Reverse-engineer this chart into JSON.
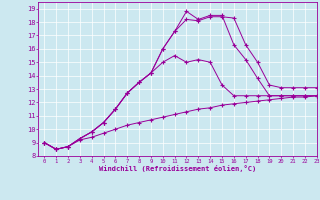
{
  "xlabel": "Windchill (Refroidissement éolien,°C)",
  "background_color": "#cce8f0",
  "line_color": "#990099",
  "xlim": [
    -0.5,
    23
  ],
  "ylim": [
    8,
    19.5
  ],
  "xticks": [
    0,
    1,
    2,
    3,
    4,
    5,
    6,
    7,
    8,
    9,
    10,
    11,
    12,
    13,
    14,
    15,
    16,
    17,
    18,
    19,
    20,
    21,
    22,
    23
  ],
  "yticks": [
    8,
    9,
    10,
    11,
    12,
    13,
    14,
    15,
    16,
    17,
    18,
    19
  ],
  "line1_x": [
    0,
    1,
    2,
    3,
    4,
    5,
    6,
    7,
    8,
    9,
    10,
    11,
    12,
    13,
    14,
    15,
    16,
    17,
    18,
    19,
    20,
    21,
    22,
    23
  ],
  "line1_y": [
    9.0,
    8.5,
    8.7,
    9.2,
    9.4,
    9.7,
    10.0,
    10.3,
    10.5,
    10.7,
    10.9,
    11.1,
    11.3,
    11.5,
    11.6,
    11.8,
    11.9,
    12.0,
    12.1,
    12.2,
    12.3,
    12.4,
    12.4,
    12.5
  ],
  "line2_x": [
    0,
    1,
    2,
    3,
    4,
    5,
    6,
    7,
    8,
    9,
    10,
    11,
    12,
    13,
    14,
    15,
    16,
    17,
    18,
    19,
    20,
    21,
    22,
    23
  ],
  "line2_y": [
    9.0,
    8.5,
    8.7,
    9.3,
    9.8,
    10.5,
    11.5,
    12.7,
    13.5,
    14.2,
    15.0,
    15.5,
    15.0,
    15.2,
    15.0,
    13.3,
    12.5,
    12.5,
    12.5,
    12.5,
    12.5,
    12.5,
    12.5,
    12.5
  ],
  "line3_x": [
    0,
    1,
    2,
    3,
    4,
    5,
    6,
    7,
    8,
    9,
    10,
    11,
    12,
    13,
    14,
    15,
    16,
    17,
    18,
    19,
    20,
    21,
    22,
    23
  ],
  "line3_y": [
    9.0,
    8.5,
    8.7,
    9.3,
    9.8,
    10.5,
    11.5,
    12.7,
    13.5,
    14.2,
    16.0,
    17.3,
    18.2,
    18.1,
    18.4,
    18.4,
    18.3,
    16.3,
    15.0,
    13.3,
    13.1,
    13.1,
    13.1,
    13.1
  ],
  "line4_x": [
    0,
    1,
    2,
    3,
    4,
    5,
    6,
    7,
    8,
    9,
    10,
    11,
    12,
    13,
    14,
    15,
    16,
    17,
    18,
    19,
    20,
    21,
    22,
    23
  ],
  "line4_y": [
    9.0,
    8.5,
    8.7,
    9.3,
    9.8,
    10.5,
    11.5,
    12.7,
    13.5,
    14.2,
    16.0,
    17.3,
    18.8,
    18.2,
    18.5,
    18.5,
    16.3,
    15.2,
    13.8,
    12.5,
    12.5,
    12.5,
    12.5,
    12.5
  ]
}
